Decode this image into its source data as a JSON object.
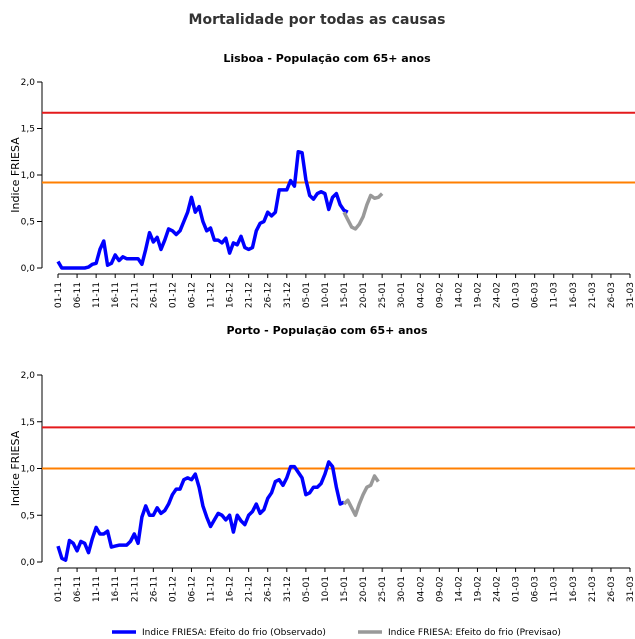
{
  "title": "Mortalidade por todas as causas",
  "chart_data": [
    {
      "type": "line",
      "title": "Lisboa - População com 65+ anos",
      "ylabel": "Indice FRIESA",
      "categories": [
        "01-11",
        null,
        null,
        null,
        null,
        "06-11",
        null,
        null,
        null,
        null,
        "11-11",
        null,
        null,
        null,
        null,
        "16-11",
        null,
        null,
        null,
        null,
        "21-11",
        null,
        null,
        null,
        null,
        "26-11",
        null,
        null,
        null,
        null,
        "01-12",
        null,
        null,
        null,
        null,
        "06-12",
        null,
        null,
        null,
        null,
        "11-12",
        null,
        null,
        null,
        null,
        "16-12",
        null,
        null,
        null,
        null,
        "21-12",
        null,
        null,
        null,
        null,
        "26-12",
        null,
        null,
        null,
        null,
        "31-12",
        null,
        null,
        null,
        null,
        "05-01",
        null,
        null,
        null,
        null,
        "10-01",
        null,
        null,
        null,
        null,
        "15-01",
        null,
        null,
        null,
        null,
        "20-01",
        null,
        null,
        null,
        null,
        "25-01",
        null,
        null,
        null,
        null,
        "30-01",
        null,
        null,
        null,
        null,
        "04-02",
        null,
        null,
        null,
        null,
        "09-02",
        null,
        null,
        null,
        null,
        "14-02",
        null,
        null,
        null,
        null,
        "19-02",
        null,
        null,
        null,
        null,
        "24-02",
        null,
        null,
        null,
        null,
        "01-03",
        null,
        null,
        null,
        null,
        "06-03",
        null,
        null,
        null,
        null,
        "11-03",
        null,
        null,
        null,
        null,
        "16-03",
        null,
        null,
        null,
        null,
        "21-03",
        null,
        null,
        null,
        null,
        "26-03",
        null,
        null,
        null,
        null,
        "31-03"
      ],
      "series": [
        {
          "name": "Indice FRIESA: Efeito do frio (Observado)",
          "color": "#0000ff",
          "values": [
            0.07,
            0.0,
            0.0,
            0.0,
            0.0,
            0.0,
            0.0,
            0.0,
            0.01,
            0.04,
            0.05,
            0.2,
            0.29,
            0.03,
            0.05,
            0.14,
            0.08,
            0.12,
            0.1,
            0.1,
            0.1,
            0.1,
            0.04,
            0.2,
            0.38,
            0.28,
            0.33,
            0.2,
            0.3,
            0.42,
            0.4,
            0.36,
            0.4,
            0.5,
            0.6,
            0.76,
            0.6,
            0.66,
            0.5,
            0.4,
            0.43,
            0.3,
            0.3,
            0.27,
            0.32,
            0.16,
            0.27,
            0.25,
            0.34,
            0.22,
            0.2,
            0.22,
            0.4,
            0.48,
            0.5,
            0.6,
            0.56,
            0.6,
            0.84,
            0.84,
            0.84,
            0.94,
            0.88,
            1.25,
            1.24,
            0.95,
            0.78,
            0.74,
            0.8,
            0.82,
            0.8,
            0.63,
            0.76,
            0.8,
            0.68,
            0.62,
            0.6,
            null,
            null,
            null,
            null,
            null,
            null,
            null,
            null,
            null,
            null,
            null,
            null,
            null,
            null,
            null,
            null,
            null,
            null,
            null,
            null,
            null,
            null,
            null,
            null,
            null,
            null,
            null,
            null,
            null,
            null,
            null,
            null,
            null,
            null,
            null,
            null,
            null,
            null,
            null,
            null,
            null,
            null,
            null,
            null,
            null,
            null,
            null,
            null,
            null,
            null,
            null,
            null,
            null,
            null,
            null,
            null,
            null,
            null,
            null,
            null,
            null,
            null,
            null,
            null,
            null,
            null,
            null,
            null,
            null,
            null,
            null,
            null,
            null,
            null
          ]
        },
        {
          "name": "Indice FRIESA: Efeito do frio (Previsao)",
          "color": "#999999",
          "values": [
            null,
            null,
            null,
            null,
            null,
            null,
            null,
            null,
            null,
            null,
            null,
            null,
            null,
            null,
            null,
            null,
            null,
            null,
            null,
            null,
            null,
            null,
            null,
            null,
            null,
            null,
            null,
            null,
            null,
            null,
            null,
            null,
            null,
            null,
            null,
            null,
            null,
            null,
            null,
            null,
            null,
            null,
            null,
            null,
            null,
            null,
            null,
            null,
            null,
            null,
            null,
            null,
            null,
            null,
            null,
            null,
            null,
            null,
            null,
            null,
            null,
            null,
            null,
            null,
            null,
            null,
            null,
            null,
            null,
            null,
            null,
            null,
            null,
            null,
            null,
            0.6,
            0.52,
            0.44,
            0.42,
            0.47,
            0.55,
            0.68,
            0.78,
            0.75,
            0.76,
            0.8,
            null,
            null,
            null,
            null,
            null,
            null,
            null,
            null,
            null,
            null,
            null,
            null,
            null,
            null,
            null,
            null,
            null,
            null,
            null,
            null,
            null,
            null,
            null,
            null,
            null,
            null,
            null,
            null,
            null,
            null,
            null,
            null,
            null,
            null,
            null,
            null,
            null,
            null,
            null,
            null,
            null,
            null,
            null,
            null,
            null,
            null,
            null,
            null,
            null,
            null,
            null,
            null,
            null,
            null,
            null,
            null,
            null,
            null,
            null,
            null,
            null,
            null,
            null,
            null,
            null
          ]
        }
      ],
      "reference_lines": [
        {
          "value": 1.67,
          "color": "#e41a1c"
        },
        {
          "value": 0.92,
          "color": "#ff7f00"
        }
      ],
      "ylim": [
        0,
        2
      ],
      "yticks": [
        {
          "value": 0,
          "label": "0,0"
        },
        {
          "value": 0.5,
          "label": "0,5"
        },
        {
          "value": 1,
          "label": "1,0"
        },
        {
          "value": 1.5,
          "label": "1,5"
        },
        {
          "value": 2,
          "label": "2,0"
        }
      ]
    },
    {
      "type": "line",
      "title": "Porto - População com 65+ anos",
      "ylabel": "Indice FRIESA",
      "categories": [
        "01-11",
        null,
        null,
        null,
        null,
        "06-11",
        null,
        null,
        null,
        null,
        "11-11",
        null,
        null,
        null,
        null,
        "16-11",
        null,
        null,
        null,
        null,
        "21-11",
        null,
        null,
        null,
        null,
        "26-11",
        null,
        null,
        null,
        null,
        "01-12",
        null,
        null,
        null,
        null,
        "06-12",
        null,
        null,
        null,
        null,
        "11-12",
        null,
        null,
        null,
        null,
        "16-12",
        null,
        null,
        null,
        null,
        "21-12",
        null,
        null,
        null,
        null,
        "26-12",
        null,
        null,
        null,
        null,
        "31-12",
        null,
        null,
        null,
        null,
        "05-01",
        null,
        null,
        null,
        null,
        "10-01",
        null,
        null,
        null,
        null,
        "15-01",
        null,
        null,
        null,
        null,
        "20-01",
        null,
        null,
        null,
        null,
        "25-01",
        null,
        null,
        null,
        null,
        "30-01",
        null,
        null,
        null,
        null,
        "04-02",
        null,
        null,
        null,
        null,
        "09-02",
        null,
        null,
        null,
        null,
        "14-02",
        null,
        null,
        null,
        null,
        "19-02",
        null,
        null,
        null,
        null,
        "24-02",
        null,
        null,
        null,
        null,
        "01-03",
        null,
        null,
        null,
        null,
        "06-03",
        null,
        null,
        null,
        null,
        "11-03",
        null,
        null,
        null,
        null,
        "16-03",
        null,
        null,
        null,
        null,
        "21-03",
        null,
        null,
        null,
        null,
        "26-03",
        null,
        null,
        null,
        null,
        "31-03"
      ],
      "series": [
        {
          "name": "Indice FRIESA: Efeito do frio (Observado)",
          "color": "#0000ff",
          "values": [
            0.17,
            0.04,
            0.02,
            0.23,
            0.2,
            0.12,
            0.22,
            0.2,
            0.1,
            0.25,
            0.37,
            0.3,
            0.3,
            0.33,
            0.16,
            0.17,
            0.18,
            0.18,
            0.18,
            0.22,
            0.3,
            0.2,
            0.48,
            0.6,
            0.5,
            0.5,
            0.58,
            0.52,
            0.55,
            0.62,
            0.72,
            0.78,
            0.78,
            0.88,
            0.9,
            0.88,
            0.94,
            0.8,
            0.6,
            0.48,
            0.38,
            0.45,
            0.52,
            0.5,
            0.45,
            0.5,
            0.32,
            0.5,
            0.44,
            0.4,
            0.5,
            0.54,
            0.62,
            0.52,
            0.56,
            0.68,
            0.74,
            0.86,
            0.88,
            0.82,
            0.9,
            1.02,
            1.02,
            0.96,
            0.9,
            0.72,
            0.74,
            0.8,
            0.8,
            0.84,
            0.94,
            1.07,
            1.02,
            0.8,
            0.62,
            0.64,
            null,
            null,
            null,
            null,
            null,
            null,
            null,
            null,
            null,
            null,
            null,
            null,
            null,
            null,
            null,
            null,
            null,
            null,
            null,
            null,
            null,
            null,
            null,
            null,
            null,
            null,
            null,
            null,
            null,
            null,
            null,
            null,
            null,
            null,
            null,
            null,
            null,
            null,
            null,
            null,
            null,
            null,
            null,
            null,
            null,
            null,
            null,
            null,
            null,
            null,
            null,
            null,
            null,
            null,
            null,
            null,
            null,
            null,
            null,
            null,
            null,
            null,
            null,
            null,
            null,
            null,
            null,
            null,
            null,
            null,
            null,
            null,
            null,
            null,
            null
          ]
        },
        {
          "name": "Indice FRIESA: Efeito do frio (Previsao)",
          "color": "#999999",
          "values": [
            null,
            null,
            null,
            null,
            null,
            null,
            null,
            null,
            null,
            null,
            null,
            null,
            null,
            null,
            null,
            null,
            null,
            null,
            null,
            null,
            null,
            null,
            null,
            null,
            null,
            null,
            null,
            null,
            null,
            null,
            null,
            null,
            null,
            null,
            null,
            null,
            null,
            null,
            null,
            null,
            null,
            null,
            null,
            null,
            null,
            null,
            null,
            null,
            null,
            null,
            null,
            null,
            null,
            null,
            null,
            null,
            null,
            null,
            null,
            null,
            null,
            null,
            null,
            null,
            null,
            null,
            null,
            null,
            null,
            null,
            null,
            null,
            null,
            null,
            null,
            0.62,
            0.66,
            0.58,
            0.5,
            0.62,
            0.72,
            0.8,
            0.82,
            0.92,
            0.86,
            null,
            null,
            null,
            null,
            null,
            null,
            null,
            null,
            null,
            null,
            null,
            null,
            null,
            null,
            null,
            null,
            null,
            null,
            null,
            null,
            null,
            null,
            null,
            null,
            null,
            null,
            null,
            null,
            null,
            null,
            null,
            null,
            null,
            null,
            null,
            null,
            null,
            null,
            null,
            null,
            null,
            null,
            null,
            null,
            null,
            null,
            null,
            null,
            null,
            null,
            null,
            null,
            null,
            null,
            null,
            null,
            null,
            null,
            null,
            null,
            null,
            null,
            null,
            null,
            null,
            null
          ]
        }
      ],
      "reference_lines": [
        {
          "value": 1.44,
          "color": "#e41a1c"
        },
        {
          "value": 1.0,
          "color": "#ff7f00"
        }
      ],
      "ylim": [
        0,
        2
      ],
      "yticks": [
        {
          "value": 0,
          "label": "0,0"
        },
        {
          "value": 0.5,
          "label": "0,5"
        },
        {
          "value": 1,
          "label": "1,0"
        },
        {
          "value": 1.5,
          "label": "1,5"
        },
        {
          "value": 2,
          "label": "2,0"
        }
      ]
    }
  ]
}
